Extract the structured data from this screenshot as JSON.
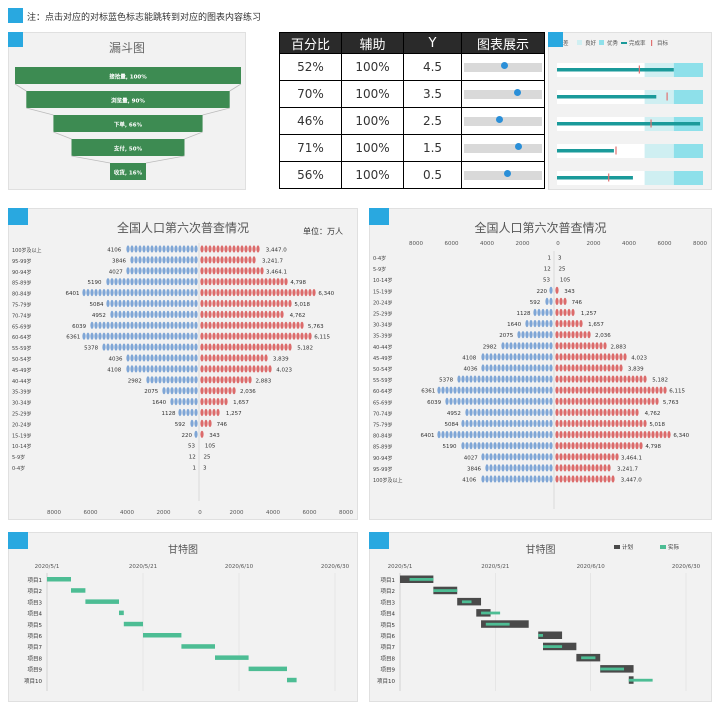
{
  "note": "注：点击对应的对标蓝色标志能跳转到对应的图表内容练习",
  "funnel": {
    "title": "漏斗图",
    "stages": [
      {
        "label": "接拾量, 100%",
        "value": 100
      },
      {
        "label": "浏览量, 90%",
        "value": 90
      },
      {
        "label": "下单, 66%",
        "value": 66
      },
      {
        "label": "支付, 50%",
        "value": 50
      },
      {
        "label": "收货, 16%",
        "value": 16
      }
    ]
  },
  "table": {
    "headers": [
      "百分比",
      "辅助",
      "Y",
      "图表展示"
    ],
    "rows": [
      {
        "pct": "52%",
        "aux": "100%",
        "y": "4.5",
        "v": 0.52
      },
      {
        "pct": "70%",
        "aux": "100%",
        "y": "3.5",
        "v": 0.7
      },
      {
        "pct": "46%",
        "aux": "100%",
        "y": "2.5",
        "v": 0.46
      },
      {
        "pct": "71%",
        "aux": "100%",
        "y": "1.5",
        "v": 0.71
      },
      {
        "pct": "56%",
        "aux": "100%",
        "y": "0.5",
        "v": 0.56
      }
    ]
  },
  "bullet": {
    "legend": [
      "差",
      "良好",
      "优秀",
      "完成率",
      "目标"
    ],
    "rows": [
      {
        "done": 0.8,
        "target": 0.56
      },
      {
        "done": 0.68,
        "target": 0.75
      },
      {
        "done": 0.98,
        "target": 0.64
      },
      {
        "done": 0.39,
        "target": 0.4
      },
      {
        "done": 0.52,
        "target": 0.35
      }
    ]
  },
  "pyramid1": {
    "title": "全国人口第六次普查情况",
    "unit": "单位：万人",
    "axis_ticks": [
      "8000",
      "6000",
      "4000",
      "2000",
      "0",
      "2000",
      "4000",
      "6000",
      "8000"
    ]
  },
  "pyramid2": {
    "title": "全国人口第六次普查情况",
    "axis_ticks": [
      "8000",
      "6000",
      "4000",
      "2000",
      "0",
      "2000",
      "4000",
      "6000",
      "8000"
    ]
  },
  "population": {
    "ages": [
      "0-4岁",
      "5-9岁",
      "10-14岁",
      "15-19岁",
      "20-24岁",
      "25-29岁",
      "30-34岁",
      "35-39岁",
      "40-44岁",
      "45-49岁",
      "50-54岁",
      "55-59岁",
      "60-64岁",
      "65-69岁",
      "70-74岁",
      "75-79岁",
      "80-84岁",
      "85-89岁",
      "90-94岁",
      "95-99岁",
      "100岁及以上"
    ],
    "male": [
      1,
      12,
      53,
      220,
      592,
      1128,
      1640,
      2075,
      2982,
      4108,
      4036,
      5378,
      6361,
      6039,
      4952,
      5084,
      6401,
      5190,
      4027,
      3846,
      4106
    ],
    "female_labels": [
      "3",
      "25",
      "105",
      "343",
      "746",
      "1,257",
      "1,657",
      "2,036",
      "2,883",
      "4,023",
      "3,839",
      "5,182",
      "6,115",
      "5,763",
      "4,762",
      "5,018",
      "6,340",
      "4,798",
      "3,464.1",
      "3,241.7",
      "3,447.0"
    ],
    "female": [
      3,
      25,
      105,
      343,
      746,
      1257,
      1657,
      2036,
      2883,
      4023,
      3839,
      5182,
      6115,
      5763,
      4762,
      5018,
      6340,
      4798,
      3464.1,
      3241.7,
      3447.0
    ]
  },
  "gantt1": {
    "title": "甘特图",
    "dates": [
      "2020/5/1",
      "2020/5/21",
      "2020/6/10",
      "2020/6/30"
    ],
    "projects": [
      "项目1",
      "项目2",
      "项目3",
      "项目4",
      "项目5",
      "项目6",
      "项目7",
      "项目8",
      "项目9",
      "项目10"
    ],
    "tasks": [
      [
        0,
        5
      ],
      [
        5,
        3
      ],
      [
        8,
        7
      ],
      [
        15,
        1
      ],
      [
        16,
        4
      ],
      [
        20,
        8
      ],
      [
        28,
        7
      ],
      [
        35,
        7
      ],
      [
        42,
        8
      ],
      [
        50,
        2
      ]
    ]
  },
  "gantt2": {
    "title": "甘特图",
    "legend": [
      "计划",
      "实际"
    ],
    "dates": [
      "2020/5/1",
      "2020/5/21",
      "2020/6/10",
      "2020/6/30"
    ],
    "projects": [
      "项目1",
      "项目2",
      "项目3",
      "项目4",
      "项目5",
      "项目6",
      "项目7",
      "项目8",
      "项目9",
      "项目10"
    ],
    "plan": [
      [
        0,
        7
      ],
      [
        7,
        5
      ],
      [
        12,
        5
      ],
      [
        16,
        3
      ],
      [
        17,
        10
      ],
      [
        29,
        5
      ],
      [
        30,
        7
      ],
      [
        37,
        5
      ],
      [
        42,
        7
      ],
      [
        48,
        1
      ]
    ],
    "actual": [
      [
        2,
        5
      ],
      [
        7,
        5
      ],
      [
        13,
        2
      ],
      [
        17,
        4
      ],
      [
        18,
        5
      ],
      [
        29,
        1
      ],
      [
        30,
        4
      ],
      [
        38,
        3
      ],
      [
        42,
        5
      ],
      [
        48,
        5
      ]
    ]
  },
  "colors": {
    "accent": "#29a8e0",
    "green": "#3d8b52",
    "male": "#7fa6d6",
    "female": "#dc6b6b",
    "gantt": "#4dbd94",
    "plan": "#4a4a4a",
    "teal": "#1a9a9a"
  }
}
